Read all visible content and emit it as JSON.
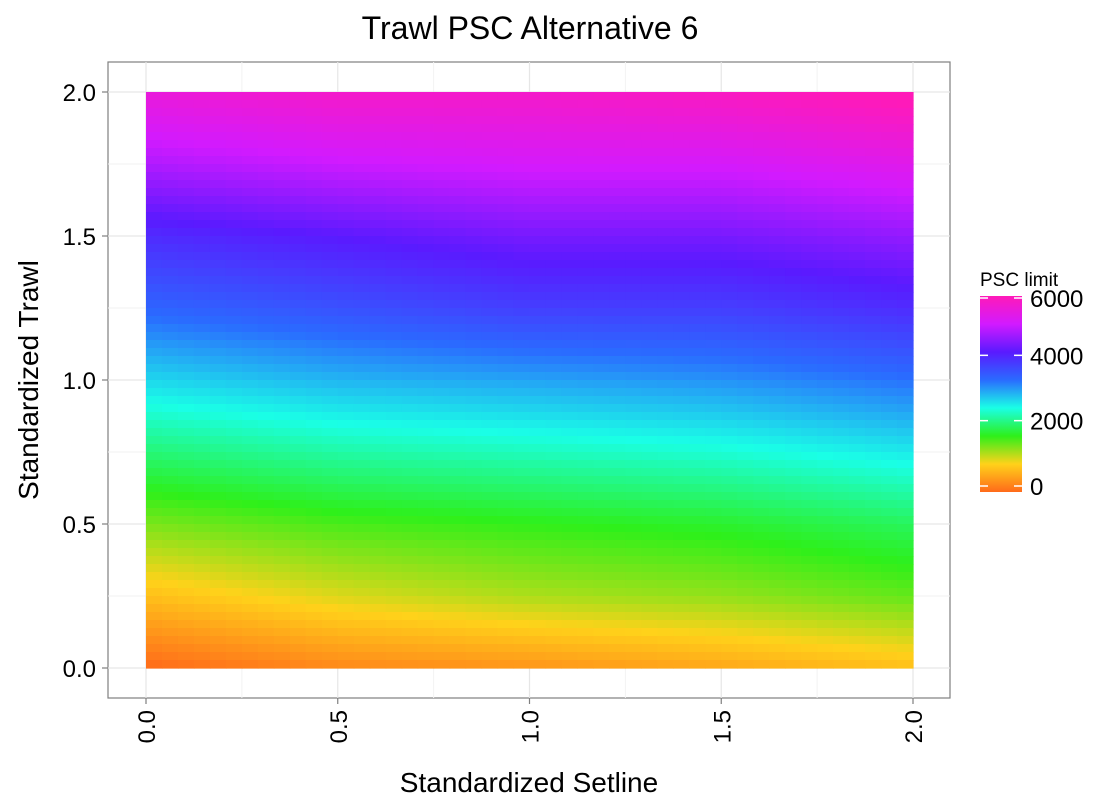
{
  "chart_data": {
    "type": "heatmap",
    "title": "Trawl PSC Alternative 6",
    "xlabel": "Standardized Setline",
    "ylabel": "Standardized Trawl",
    "xlim": [
      0,
      2
    ],
    "ylim": [
      0,
      2
    ],
    "x_ticks": [
      "0.0",
      "0.5",
      "1.0",
      "1.5",
      "2.0"
    ],
    "y_ticks": [
      "0.0",
      "0.5",
      "1.0",
      "1.5",
      "2.0"
    ],
    "grid": true,
    "legend": {
      "title": "PSC limit",
      "position": "right",
      "ticks": [
        "0",
        "2000",
        "4000",
        "6000"
      ],
      "range": [
        0,
        6000
      ],
      "colors": [
        "#ff6a1a",
        "#ffd21a",
        "#2ef01a",
        "#1affe6",
        "#2a6bff",
        "#5a1aff",
        "#d21aff",
        "#ff1ab8"
      ]
    },
    "x": [
      0,
      0.5,
      1.0,
      1.5,
      2.0
    ],
    "series": [
      {
        "y": 0.0,
        "values": [
          0,
          250,
          350,
          500,
          700
        ]
      },
      {
        "y": 0.25,
        "values": [
          700,
          1000,
          1200,
          1300,
          1500
        ]
      },
      {
        "y": 0.5,
        "values": [
          1400,
          1600,
          1700,
          1800,
          2000
        ]
      },
      {
        "y": 0.75,
        "values": [
          2100,
          2300,
          2400,
          2500,
          2700
        ]
      },
      {
        "y": 1.0,
        "values": [
          2800,
          3000,
          3100,
          3200,
          3400
        ]
      },
      {
        "y": 1.25,
        "values": [
          3500,
          3700,
          3900,
          3900,
          4100
        ]
      },
      {
        "y": 1.5,
        "values": [
          4100,
          4300,
          4500,
          4500,
          4700
        ]
      },
      {
        "y": 1.75,
        "values": [
          4900,
          5100,
          5200,
          5200,
          5400
        ]
      },
      {
        "y": 2.0,
        "values": [
          5600,
          5800,
          5800,
          5900,
          6100
        ]
      }
    ]
  }
}
